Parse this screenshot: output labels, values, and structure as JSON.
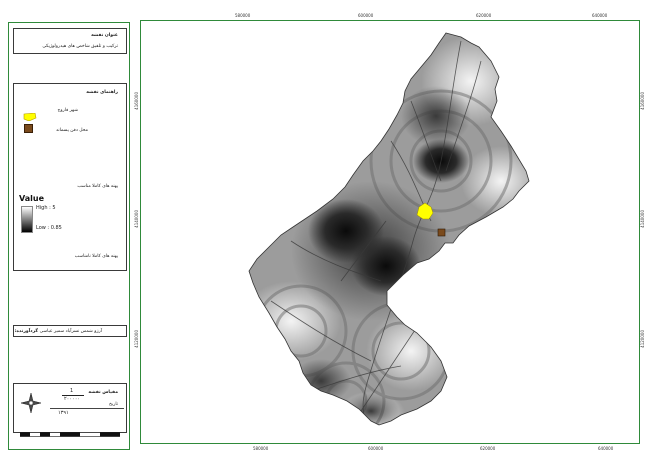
{
  "title_panel": {
    "heading": "عنوان نقشه",
    "subtitle": "ترکیب و تلفیق شاخص های هیدرولوژیکی"
  },
  "legend": {
    "heading": "راهنمای نقشه",
    "items": [
      {
        "label": "شهر فاروج",
        "color": "#ffff00"
      },
      {
        "label": "محل دفن پسماند",
        "color": "#7a4a1c"
      }
    ],
    "suitable_label": "پهنه های کاملا مناسب",
    "value_title": "Value",
    "high_label": "High : 5",
    "low_label": "Low : 0.85",
    "unsuitable_label": "پهنه های کاملا نامناسب"
  },
  "author": {
    "label": "گردآورنده:",
    "name": "آرزو شمس نسرآباد سمیر عباسی"
  },
  "specs": {
    "heading": "مقیاس نقشه",
    "ratio_top": "1",
    "ratio_bottom": "۲۰۰۰۰۰",
    "year_label": "تاریخ",
    "year_value": "۱۳۹۱"
  },
  "ticks": {
    "top": [
      "580000",
      "600000",
      "620000",
      "640000"
    ],
    "bottom": [
      "580000",
      "600000",
      "620000",
      "640000"
    ],
    "left": [
      "4160000",
      "4140000",
      "4120000"
    ],
    "right": [
      "4160000",
      "4140000",
      "4120000"
    ]
  },
  "colors": {
    "frame": "#2f8a3a",
    "city": "#ffff00",
    "landfill": "#7a4a1c"
  }
}
